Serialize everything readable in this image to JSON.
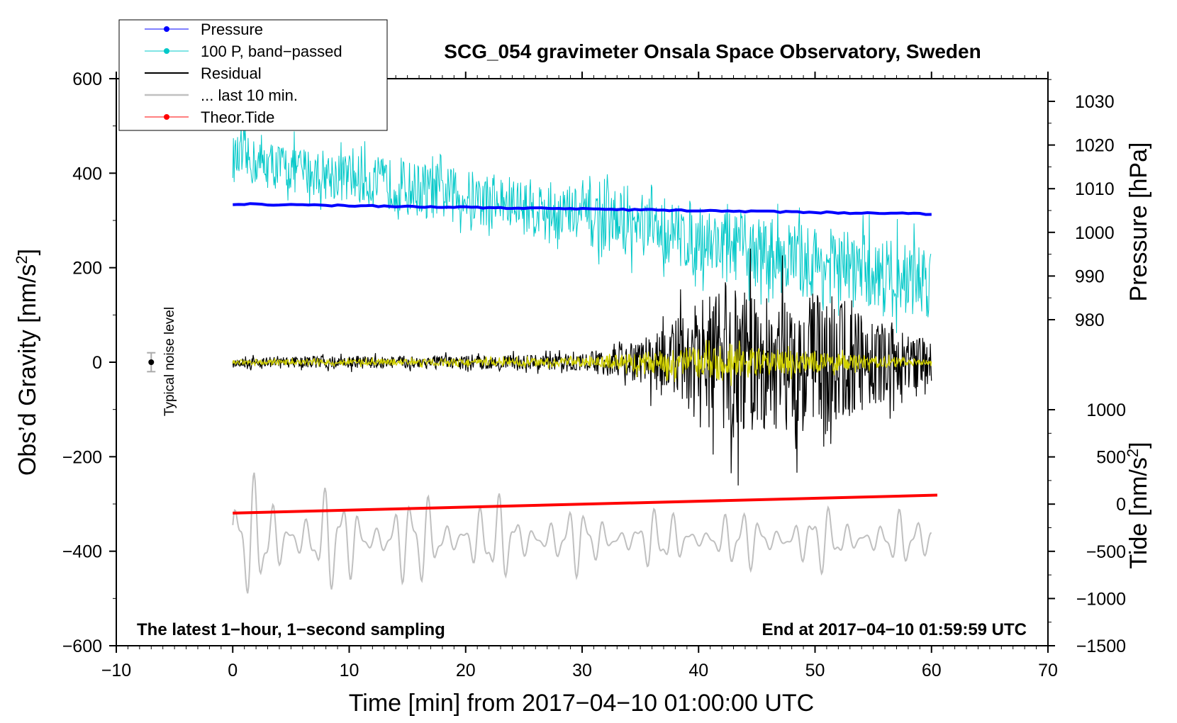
{
  "chart_data": {
    "type": "line",
    "title": "SCG_054 gravimeter Onsala Space Observatory, Sweden",
    "xlabel": "Time [min] from 2017−04−10 01:00:00 UTC",
    "ylabel_left": "Obs’d Gravity [nm/s",
    "ylabel_left_sup": "2",
    "ylabel_left_close": "]",
    "ylabel_pressure": "Pressure [hPa]",
    "ylabel_tide": "Tide [nm/s",
    "ylabel_tide_sup": "2",
    "ylabel_tide_close": "]",
    "xlim": [
      -10,
      70
    ],
    "ylim": [
      -600,
      600
    ],
    "x_ticks": [
      -10,
      0,
      10,
      20,
      30,
      40,
      50,
      60,
      70
    ],
    "x_tick_labels": [
      "−10",
      "0",
      "10",
      "20",
      "30",
      "40",
      "50",
      "60",
      "70"
    ],
    "y_ticks": [
      600,
      400,
      200,
      0,
      -200,
      -400,
      -600
    ],
    "y_tick_labels": [
      "600",
      "400",
      "200",
      "0",
      "−200",
      "−400",
      "−600"
    ],
    "pressure_ticks": [
      1030,
      1020,
      1010,
      1000,
      990,
      980
    ],
    "pressure_tick_labels": [
      "1030",
      "1020",
      "1010",
      "1000",
      "990",
      "980"
    ],
    "tide_ticks": [
      1000,
      500,
      0,
      -500,
      -1000,
      -1500
    ],
    "tide_tick_labels": [
      "1000",
      "500",
      "0",
      "−500",
      "−1000",
      "−1500"
    ],
    "series": [
      {
        "name": "Pressure",
        "color": "#0000ff",
        "axis": "pressure",
        "x": [
          0,
          60
        ],
        "values": [
          1006.5,
          1004.2
        ]
      },
      {
        "name": "100 P, band−passed",
        "color": "#00c8c8",
        "axis": "gravity",
        "x": [
          0,
          10,
          20,
          30,
          40,
          50,
          60
        ],
        "values": [
          430,
          390,
          350,
          310,
          260,
          210,
          170
        ],
        "amplitude": [
          55,
          60,
          65,
          70,
          80,
          90,
          90
        ]
      },
      {
        "name": "Residual",
        "color": "#000000",
        "axis": "gravity",
        "x": [
          0,
          10,
          20,
          30,
          35,
          40,
          43,
          46,
          50,
          55,
          60
        ],
        "values": [
          0,
          0,
          0,
          0,
          0,
          0,
          0,
          0,
          0,
          0,
          0
        ],
        "amplitude": [
          12,
          15,
          15,
          20,
          50,
          140,
          200,
          150,
          190,
          100,
          50
        ]
      },
      {
        "name": "... last 10 min.",
        "color": "#c0c0c0",
        "axis": "gravity",
        "x": [
          0,
          10,
          20,
          30,
          40,
          50,
          60
        ],
        "values": [
          -375,
          -375,
          -375,
          -375,
          -375,
          -375,
          -375
        ],
        "amplitude": [
          150,
          120,
          110,
          80,
          70,
          80,
          60
        ]
      },
      {
        "name": "Theor.Tide",
        "color": "#ff0000",
        "axis": "tide",
        "x": [
          0,
          60.5
        ],
        "values": [
          -95,
          95
        ]
      },
      {
        "name": "band-passed residual (yellow)",
        "color": "#d2d200",
        "axis": "gravity",
        "x": [
          0,
          30,
          41,
          50,
          60
        ],
        "values": [
          0,
          0,
          0,
          0,
          0
        ],
        "amplitude": [
          6,
          10,
          40,
          25,
          6
        ]
      }
    ],
    "legend": [
      "Pressure",
      "100 P, band−passed",
      "Residual",
      "... last 10 min.",
      "Theor.Tide"
    ],
    "legend_placement": "top-left",
    "noise_level": {
      "x": -7,
      "value": 0,
      "error": 20,
      "label": "Typical noise level"
    },
    "annotations": {
      "bottom_left": "The latest 1−hour, 1−second sampling",
      "bottom_right": "End at 2017−04−10 01:59:59 UTC"
    },
    "grid": false
  }
}
